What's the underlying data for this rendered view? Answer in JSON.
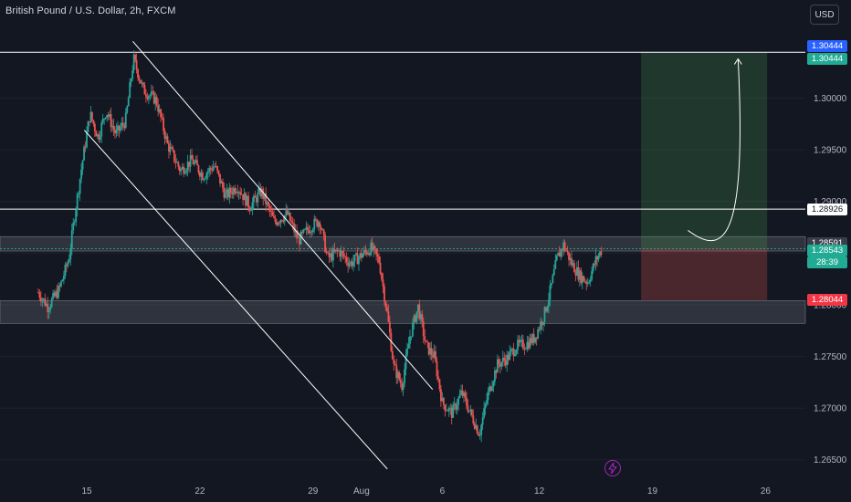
{
  "header": {
    "symbol_title": "British Pound / U.S. Dollar, 2h, FXCM",
    "currency": "USD"
  },
  "price_tags": {
    "target_blue": {
      "text": "1.30444",
      "bg": "#2962ff",
      "fg": "#ffffff"
    },
    "target_green": {
      "text": "1.30444",
      "bg": "#22ab94",
      "fg": "#ffffff"
    },
    "level_white": {
      "text": "1.28926",
      "bg": "#ffffff",
      "fg": "#131722"
    },
    "zone_top": {
      "text": "1.28591",
      "bg": "#3a3e4a",
      "fg": "#ffffff"
    },
    "current": {
      "text": "1.28543",
      "countdown": "28:39",
      "bg": "#22ab94",
      "fg": "#ffffff"
    },
    "stop": {
      "text": "1.28044",
      "bg": "#f23645",
      "fg": "#ffffff"
    }
  },
  "icons": {
    "replay": "lightning-bolt-icon"
  },
  "colors": {
    "bull": "#26a69a",
    "bear": "#ef5350",
    "target_zone": "rgba(76,175,80,0.22)",
    "stop_zone": "rgba(239,83,80,0.25)",
    "sr_zone": "rgba(178,181,190,0.18)"
  },
  "chart_data": {
    "type": "candlestick",
    "ylim": [
      1.2625,
      1.3095
    ],
    "y_ticks": [
      1.265,
      1.27,
      1.275,
      1.28,
      1.285,
      1.29,
      1.295,
      1.3
    ],
    "y_tick_labels": [
      "1.26500",
      "1.27000",
      "1.27500",
      "1.28000",
      "1.28500",
      "1.29000",
      "1.29500",
      "1.30000"
    ],
    "x_tick_labels": [
      "15",
      "22",
      "29",
      "Aug",
      "6",
      "12",
      "19",
      "26"
    ],
    "horizontal_levels": [
      1.30444,
      1.28926
    ],
    "zones": [
      {
        "from": 1.2852,
        "to": 1.2866
      },
      {
        "from": 1.2782,
        "to": 1.2804
      }
    ],
    "position": {
      "entry": 1.28543,
      "target": 1.30444,
      "stop": 1.28044
    },
    "channel": {
      "upper": [
        [
          1.3055,
          17.85
        ],
        [
          1.2718,
          36.4
        ]
      ],
      "lower": [
        [
          1.2969,
          14.85
        ],
        [
          1.2641,
          33.6
        ]
      ]
    },
    "price_path": [
      [
        12.0,
        1.2812
      ],
      [
        12.6,
        1.2798
      ],
      [
        13.3,
        1.2815
      ],
      [
        13.9,
        1.2845
      ],
      [
        14.3,
        1.2892
      ],
      [
        14.7,
        1.2935
      ],
      [
        15.2,
        1.2985
      ],
      [
        15.7,
        1.2962
      ],
      [
        16.2,
        1.2988
      ],
      [
        16.8,
        1.2965
      ],
      [
        17.4,
        1.2978
      ],
      [
        17.9,
        1.3038
      ],
      [
        18.5,
        1.3008
      ],
      [
        19.3,
        1.2998
      ],
      [
        20.0,
        1.2955
      ],
      [
        20.8,
        1.293
      ],
      [
        21.5,
        1.294
      ],
      [
        22.2,
        1.2925
      ],
      [
        22.9,
        1.2935
      ],
      [
        23.6,
        1.2905
      ],
      [
        24.3,
        1.2915
      ],
      [
        25.1,
        1.2895
      ],
      [
        25.8,
        1.291
      ],
      [
        26.6,
        1.288
      ],
      [
        27.4,
        1.2888
      ],
      [
        28.1,
        1.2862
      ],
      [
        28.8,
        1.2875
      ],
      [
        29.4,
        1.2882
      ],
      [
        29.9,
        1.2845
      ],
      [
        30.6,
        1.2852
      ],
      [
        31.3,
        1.284
      ],
      [
        32.0,
        1.2848
      ],
      [
        32.6,
        1.2855
      ],
      [
        33.1,
        1.2842
      ],
      [
        33.6,
        1.279
      ],
      [
        34.0,
        1.274
      ],
      [
        34.5,
        1.2722
      ],
      [
        35.0,
        1.277
      ],
      [
        35.5,
        1.2798
      ],
      [
        36.0,
        1.276
      ],
      [
        36.5,
        1.275
      ],
      [
        37.0,
        1.2705
      ],
      [
        37.6,
        1.2695
      ],
      [
        38.2,
        1.2715
      ],
      [
        38.8,
        1.2693
      ],
      [
        39.3,
        1.2675
      ],
      [
        39.8,
        1.2712
      ],
      [
        40.4,
        1.2742
      ],
      [
        41.0,
        1.2748
      ],
      [
        41.6,
        1.276
      ],
      [
        42.2,
        1.2762
      ],
      [
        42.7,
        1.2768
      ],
      [
        43.3,
        1.279
      ],
      [
        43.7,
        1.2815
      ],
      [
        44.1,
        1.2845
      ],
      [
        44.5,
        1.2858
      ],
      [
        45.0,
        1.284
      ],
      [
        45.5,
        1.2828
      ],
      [
        46.0,
        1.2822
      ],
      [
        46.5,
        1.2843
      ],
      [
        46.9,
        1.28543
      ]
    ]
  }
}
